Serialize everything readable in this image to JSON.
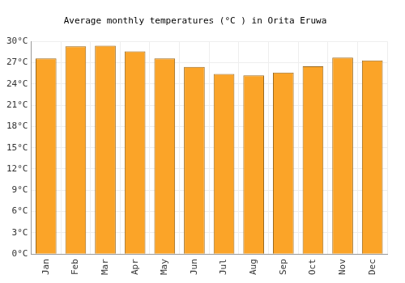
{
  "chart_data": {
    "type": "bar",
    "title": "Average monthly temperatures (°C ) in Orita Eruwa",
    "categories": [
      "Jan",
      "Feb",
      "Mar",
      "Apr",
      "May",
      "Jun",
      "Jul",
      "Aug",
      "Sep",
      "Oct",
      "Nov",
      "Dec"
    ],
    "values": [
      27.6,
      29.3,
      29.4,
      28.6,
      27.6,
      26.4,
      25.4,
      25.2,
      25.6,
      26.5,
      27.7,
      27.3
    ],
    "color": "#fba428",
    "ylim": [
      0,
      30
    ],
    "yticks": [
      {
        "value": 0,
        "label": "0°C"
      },
      {
        "value": 3,
        "label": "3°C"
      },
      {
        "value": 6,
        "label": "6°C"
      },
      {
        "value": 9,
        "label": "9°C"
      },
      {
        "value": 12,
        "label": "12°C"
      },
      {
        "value": 15,
        "label": "15°C"
      },
      {
        "value": 18,
        "label": "18°C"
      },
      {
        "value": 21,
        "label": "21°C"
      },
      {
        "value": 24,
        "label": "24°C"
      },
      {
        "value": 27,
        "label": "27°C"
      },
      {
        "value": 30,
        "label": "30°C"
      }
    ],
    "grid": true
  }
}
